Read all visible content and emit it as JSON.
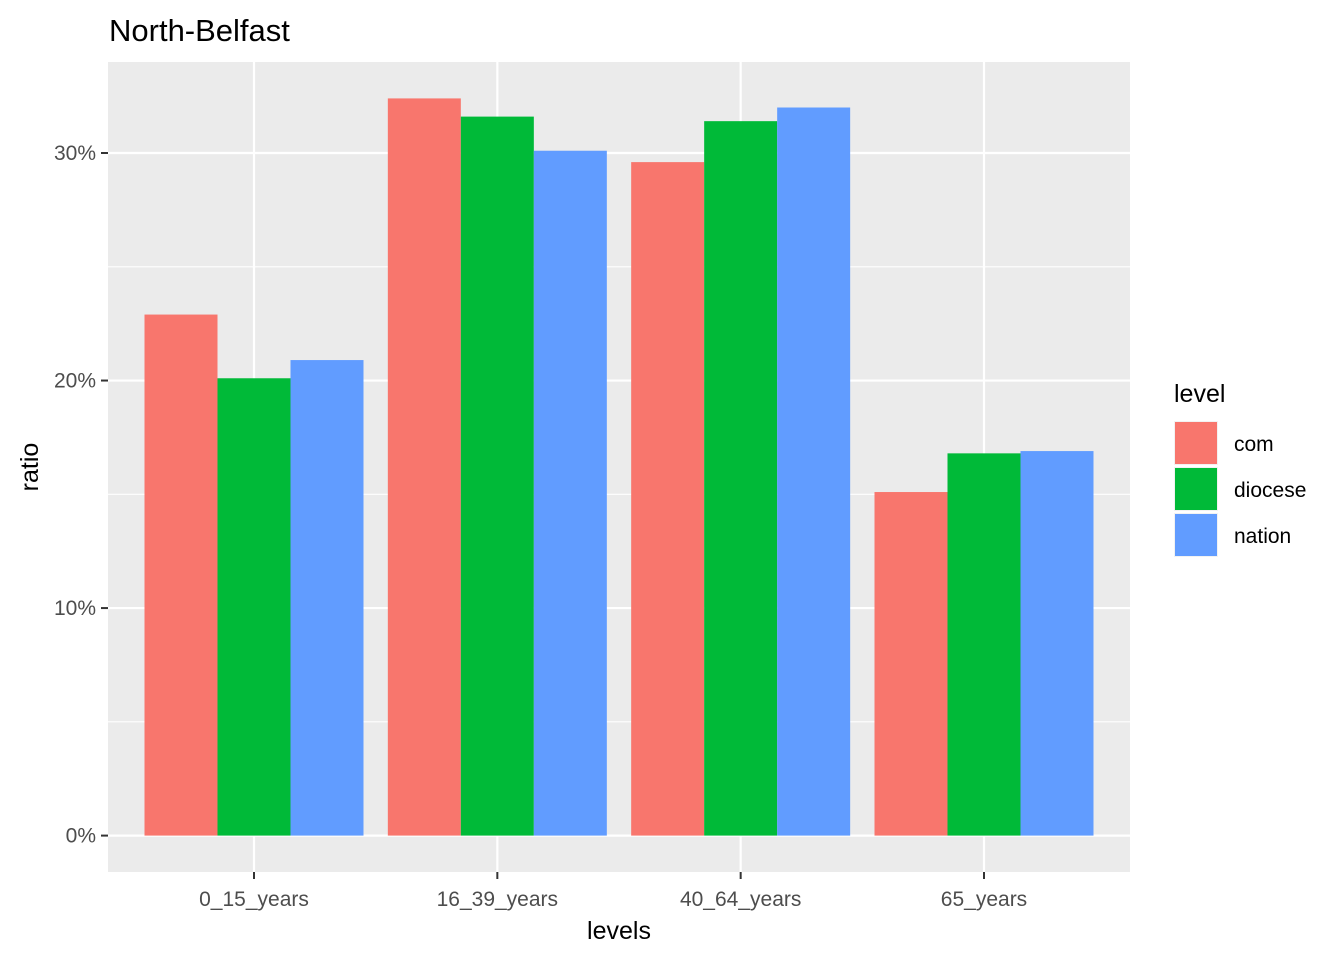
{
  "chart_data": {
    "type": "bar",
    "title": "North-Belfast",
    "xlabel": "levels",
    "ylabel": "ratio",
    "categories": [
      "0_15_years",
      "16_39_years",
      "40_64_years",
      "65_years"
    ],
    "series": [
      {
        "name": "com",
        "color": "#F8766D",
        "values": [
          0.229,
          0.324,
          0.296,
          0.151
        ]
      },
      {
        "name": "diocese",
        "color": "#00BA38",
        "values": [
          0.201,
          0.316,
          0.314,
          0.168
        ]
      },
      {
        "name": "nation",
        "color": "#619CFF",
        "values": [
          0.209,
          0.301,
          0.32,
          0.169
        ]
      }
    ],
    "ylim": [
      -0.016,
      0.34
    ],
    "yticks": [
      0,
      0.1,
      0.2,
      0.3
    ],
    "ytick_labels": [
      "0%",
      "10%",
      "20%",
      "30%"
    ],
    "grid": true,
    "legend": {
      "title": "level",
      "position": "right"
    },
    "panel_color": "#EBEBEB",
    "grid_color": "#FFFFFF"
  }
}
